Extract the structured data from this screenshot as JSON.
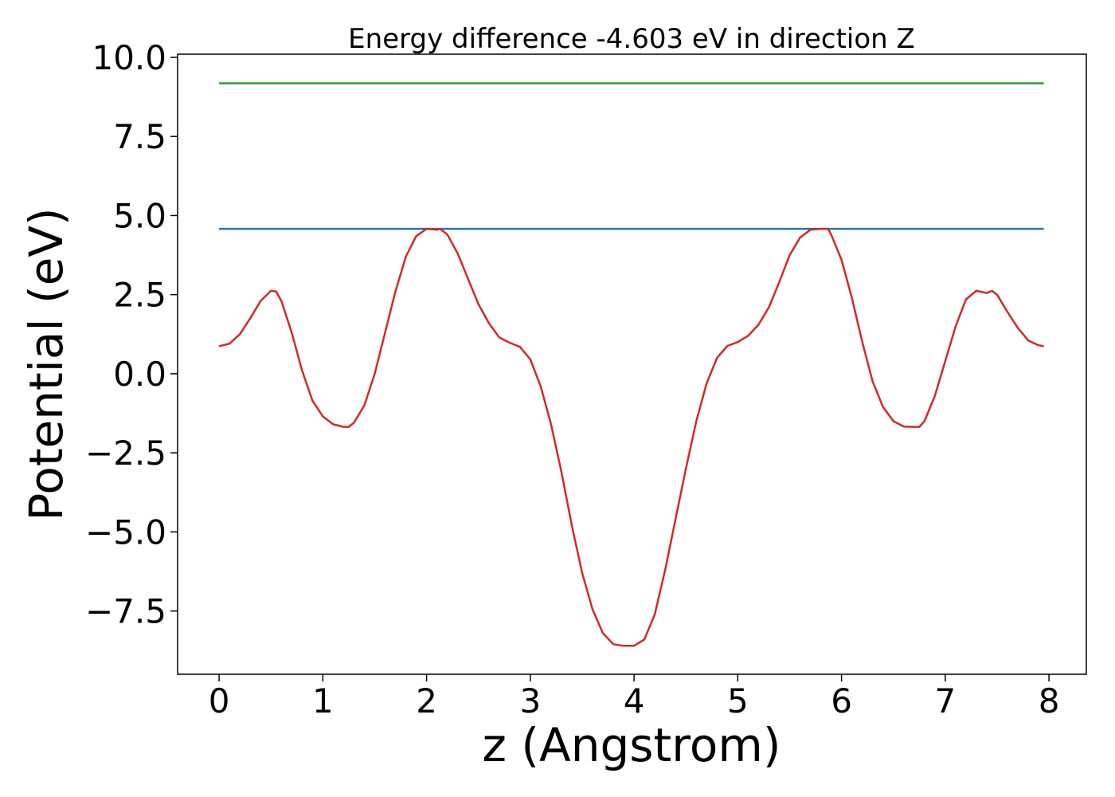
{
  "chart_data": {
    "type": "line",
    "title": "Energy difference -4.603 eV in direction Z",
    "xlabel": "z (Angstrom)",
    "ylabel": "Potential (eV)",
    "xlim": [
      -0.4,
      8.36
    ],
    "ylim": [
      -9.5,
      10.1
    ],
    "xticks": [
      0,
      1,
      2,
      3,
      4,
      5,
      6,
      7,
      8
    ],
    "xtick_labels": [
      "0",
      "1",
      "2",
      "3",
      "4",
      "5",
      "6",
      "7",
      "8"
    ],
    "yticks": [
      -7.5,
      -5.0,
      -2.5,
      0.0,
      2.5,
      5.0,
      7.5,
      10.0
    ],
    "ytick_labels": [
      "−7.5",
      "−5.0",
      "−2.5",
      "0.0",
      "2.5",
      "5.0",
      "7.5",
      "10.0"
    ],
    "grid": false,
    "series": [
      {
        "color": "#2ca02c",
        "x": [
          0,
          7.95
        ],
        "y": [
          9.18,
          9.18
        ]
      },
      {
        "color": "#1f77b4",
        "x": [
          0,
          7.95
        ],
        "y": [
          4.58,
          4.58
        ]
      },
      {
        "color": "#d62728",
        "x": [
          0.0,
          0.1,
          0.2,
          0.3,
          0.4,
          0.5,
          0.55,
          0.6,
          0.7,
          0.8,
          0.9,
          1.0,
          1.1,
          1.2,
          1.25,
          1.3,
          1.4,
          1.5,
          1.6,
          1.7,
          1.8,
          1.9,
          2.0,
          2.1,
          2.13,
          2.2,
          2.3,
          2.4,
          2.5,
          2.6,
          2.7,
          2.8,
          2.9,
          3.0,
          3.1,
          3.2,
          3.3,
          3.4,
          3.5,
          3.6,
          3.7,
          3.8,
          3.9,
          4.0,
          4.1,
          4.2,
          4.3,
          4.4,
          4.5,
          4.6,
          4.7,
          4.8,
          4.9,
          5.0,
          5.1,
          5.2,
          5.3,
          5.4,
          5.5,
          5.6,
          5.7,
          5.8,
          5.87,
          5.9,
          6.0,
          6.1,
          6.2,
          6.3,
          6.4,
          6.5,
          6.6,
          6.7,
          6.75,
          6.8,
          6.9,
          7.0,
          7.1,
          7.2,
          7.3,
          7.4,
          7.45,
          7.5,
          7.6,
          7.7,
          7.8,
          7.9,
          7.95
        ],
        "y": [
          0.87,
          0.95,
          1.25,
          1.75,
          2.3,
          2.62,
          2.6,
          2.3,
          1.3,
          0.1,
          -0.85,
          -1.35,
          -1.6,
          -1.68,
          -1.68,
          -1.55,
          -1.0,
          0.0,
          1.3,
          2.6,
          3.7,
          4.35,
          4.58,
          4.55,
          4.58,
          4.4,
          3.8,
          3.0,
          2.2,
          1.6,
          1.15,
          0.98,
          0.85,
          0.45,
          -0.4,
          -1.6,
          -3.1,
          -4.8,
          -6.3,
          -7.45,
          -8.2,
          -8.55,
          -8.6,
          -8.6,
          -8.4,
          -7.6,
          -6.2,
          -4.6,
          -3.0,
          -1.5,
          -0.3,
          0.5,
          0.88,
          1.0,
          1.2,
          1.55,
          2.1,
          2.9,
          3.75,
          4.3,
          4.55,
          4.58,
          4.58,
          4.4,
          3.6,
          2.4,
          1.0,
          -0.25,
          -1.05,
          -1.5,
          -1.67,
          -1.68,
          -1.68,
          -1.5,
          -0.7,
          0.4,
          1.5,
          2.35,
          2.62,
          2.55,
          2.62,
          2.5,
          1.95,
          1.45,
          1.05,
          0.9,
          0.87
        ]
      }
    ]
  }
}
